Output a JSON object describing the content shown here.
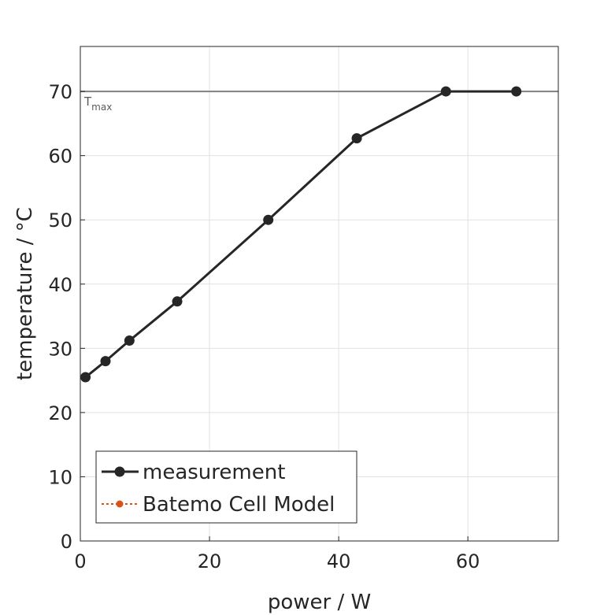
{
  "chart_data": {
    "type": "line",
    "xlabel": "power / W",
    "ylabel": "temperature / °C",
    "xlim": [
      0,
      74
    ],
    "ylim": [
      0,
      77
    ],
    "xticks": [
      0,
      20,
      40,
      60
    ],
    "yticks": [
      0,
      10,
      20,
      30,
      40,
      50,
      60,
      70
    ],
    "grid": true,
    "legend_position": "bottom-left",
    "series": [
      {
        "name": "measurement",
        "color": "#262626",
        "marker": "circle",
        "line": "solid",
        "x": [
          0.8,
          3.9,
          7.6,
          15.0,
          29.1,
          42.8,
          56.6,
          67.5
        ],
        "y": [
          25.5,
          28.0,
          31.2,
          37.3,
          50.0,
          62.7,
          70.0,
          70.0
        ]
      },
      {
        "name": "Batemo Cell Model",
        "color": "#d95319",
        "marker": "circle",
        "line": "dotted",
        "x": [],
        "y": []
      }
    ],
    "reference_lines": [
      {
        "axis": "y",
        "value": 70,
        "color": "#808080",
        "label": "T",
        "label_sub": "max"
      }
    ]
  }
}
